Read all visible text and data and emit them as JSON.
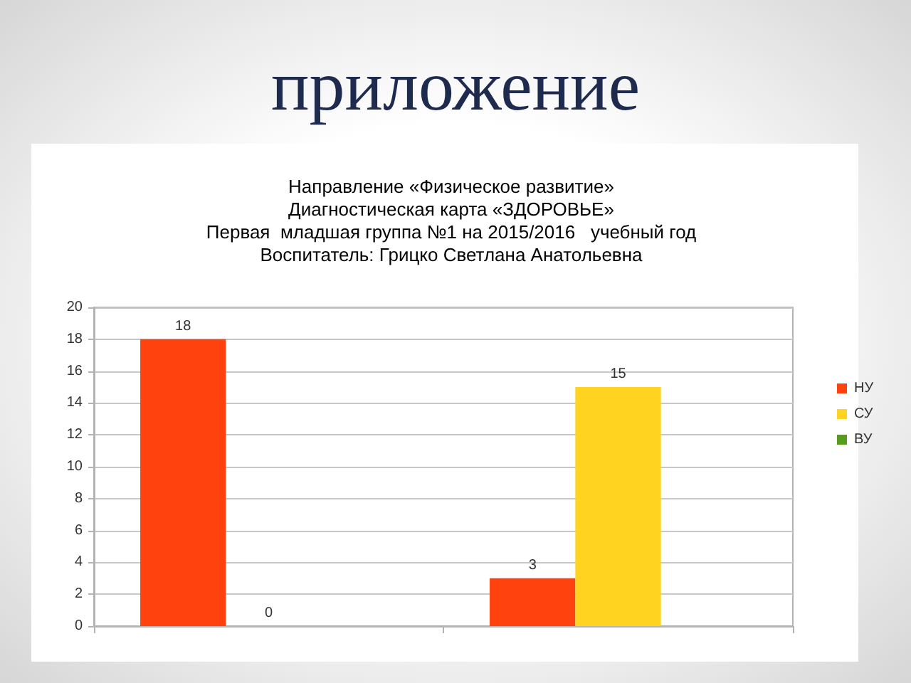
{
  "chart_data": {
    "type": "bar",
    "title": "приложение",
    "subtitle": "Направление «Физическое развитие»\nДиагностическая карта «ЗДОРОВЬЕ»\nПервая  младшая группа №1 на 2015/2016   учебный год\nВоспитатель: Грицко Светлана Анатольевна",
    "categories": [
      null,
      null
    ],
    "series": [
      {
        "name": "НУ",
        "color": "#ff420e",
        "values": [
          18,
          3
        ]
      },
      {
        "name": "СУ",
        "color": "#ffd320",
        "values": [
          0,
          15
        ]
      },
      {
        "name": "ВУ",
        "color": "#579d1c",
        "values": [
          null,
          null
        ]
      }
    ],
    "ylim": [
      0,
      20
    ],
    "yticks": [
      0,
      2,
      4,
      6,
      8,
      10,
      12,
      14,
      16,
      18,
      20
    ],
    "grid": "y",
    "legend": "right",
    "data_labels": true
  }
}
